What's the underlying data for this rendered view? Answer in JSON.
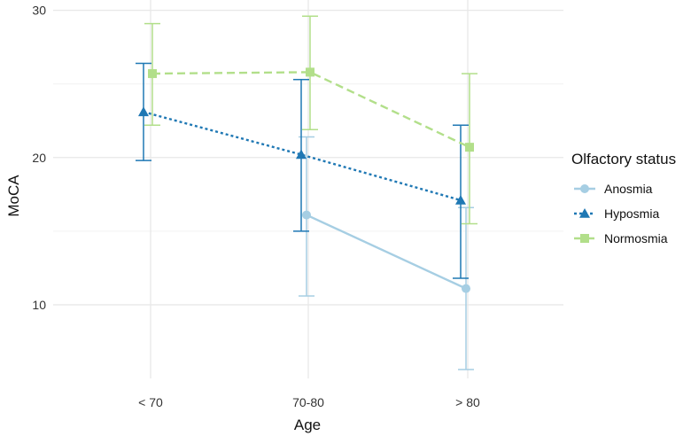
{
  "chart_data": {
    "type": "line",
    "title": "",
    "xlabel": "Age",
    "ylabel": "MoCA",
    "categories": [
      "< 70",
      "70-80",
      "> 80"
    ],
    "ylim": [
      5,
      30.7
    ],
    "yticks": [
      10,
      20,
      30
    ],
    "grid": true,
    "legend": {
      "title": "Olfactory status",
      "position": "right"
    },
    "series": [
      {
        "name": "Anosmia",
        "color": "#a6cee3",
        "marker": "circle",
        "linestyle": "solid",
        "values": [
          null,
          16.1,
          11.1
        ],
        "lower": [
          null,
          10.6,
          5.6
        ],
        "upper": [
          null,
          21.4,
          16.6
        ]
      },
      {
        "name": "Hyposmia",
        "color": "#1f78b4",
        "marker": "triangle",
        "linestyle": "dotted",
        "values": [
          23.1,
          20.2,
          17.1
        ],
        "lower": [
          19.8,
          15.0,
          11.8
        ],
        "upper": [
          26.4,
          25.3,
          22.2
        ]
      },
      {
        "name": "Normosmia",
        "color": "#b2df8a",
        "marker": "square",
        "linestyle": "dashed",
        "values": [
          25.7,
          25.8,
          20.7
        ],
        "lower": [
          22.2,
          21.9,
          15.5
        ],
        "upper": [
          29.1,
          29.6,
          25.7
        ]
      }
    ]
  }
}
